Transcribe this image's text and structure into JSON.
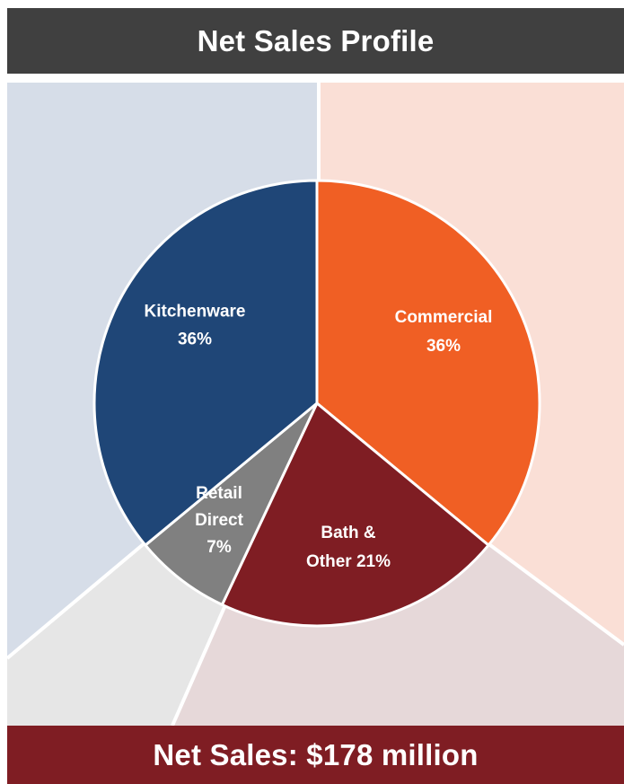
{
  "header": {
    "title": "Net Sales Profile"
  },
  "footer": {
    "total_label": "Net Sales: $178 million"
  },
  "colors": {
    "kitchenware": "#1f4677",
    "commercial": "#f05f24",
    "bath_other": "#7f1d23",
    "retail_direct": "#808080",
    "panel_left": "#d6dde8",
    "panel_right": "#fadfd6",
    "fan_left": "#e6e6e6",
    "fan_right": "#e6d8d9",
    "header_bg": "#404040"
  },
  "chart_data": {
    "type": "pie",
    "title": "Net Sales Profile",
    "slices": [
      {
        "name": "Commercial",
        "value": 36,
        "label_lines": [
          "Commercial",
          "36%"
        ]
      },
      {
        "name": "Bath & Other",
        "value": 21,
        "label_lines": [
          "Bath &",
          "Other 21%"
        ]
      },
      {
        "name": "Retail Direct",
        "value": 7,
        "label_lines": [
          "Retail",
          "Direct",
          "7%"
        ]
      },
      {
        "name": "Kitchenware",
        "value": 36,
        "label_lines": [
          "Kitchenware",
          "36%"
        ]
      }
    ],
    "total": "Net Sales: $178 million"
  }
}
